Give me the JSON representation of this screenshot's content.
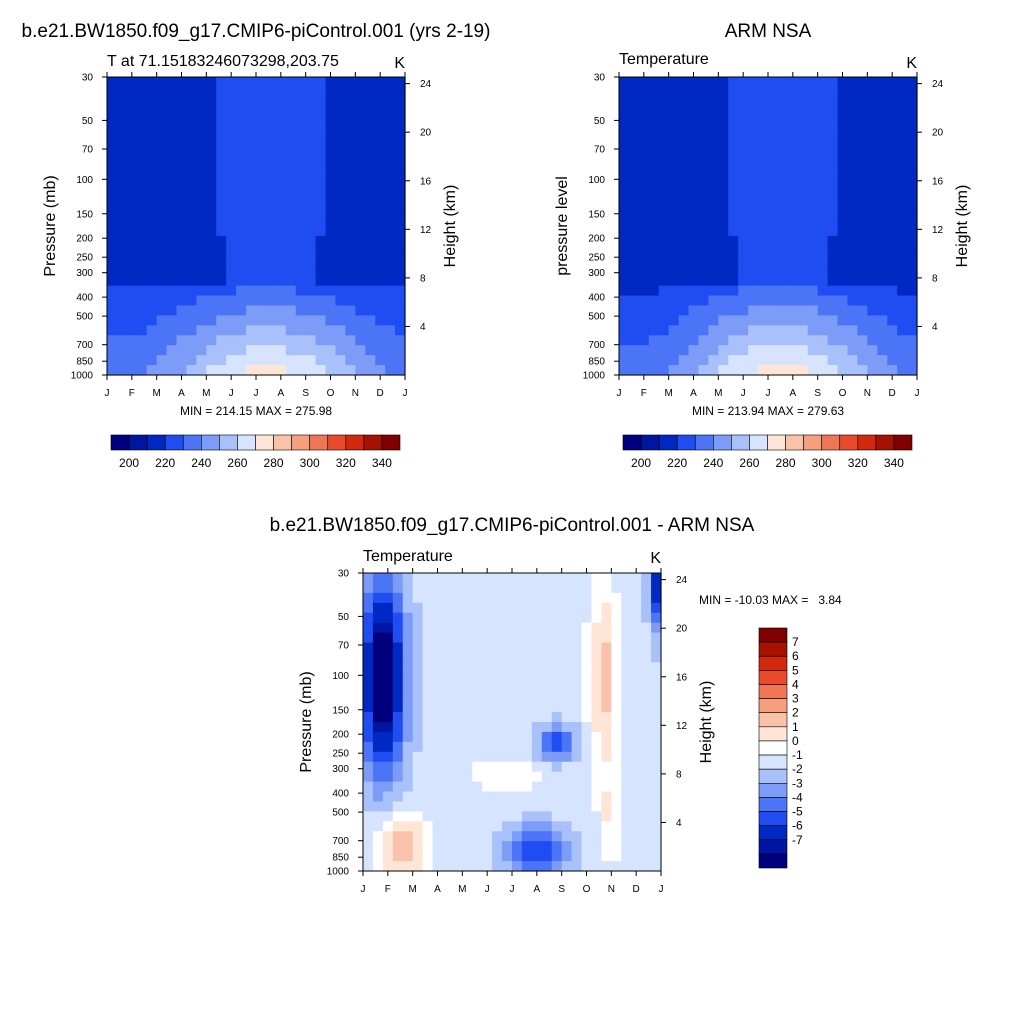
{
  "colors": {
    "abs_scale": [
      "#00007f",
      "#0016a2",
      "#0029c4",
      "#1f4df1",
      "#4c74f6",
      "#7c9cf7",
      "#a9c1fa",
      "#d6e4ff",
      "#fee5d6",
      "#fac2aa",
      "#f59f7f",
      "#ef7654",
      "#e94a2c",
      "#d0290e",
      "#a61100",
      "#7f0000"
    ],
    "diff_scale": [
      "#00007f",
      "#0016a2",
      "#0029c4",
      "#1f4df1",
      "#4c74f6",
      "#7c9cf7",
      "#a9c1fa",
      "#d6e4ff",
      "#ffffff",
      "#fee5d6",
      "#fac2aa",
      "#f59f7f",
      "#ef7654",
      "#e94a2c",
      "#d0290e",
      "#a61100",
      "#7f0000"
    ]
  },
  "chart_data": [
    {
      "type": "heatmap",
      "id": "model",
      "title": "b.e21.BW1850.f09_g17.CMIP6-piControl.001 (yrs 2-19)",
      "subtitle_left": "T at 71.15183246073298,203.75",
      "subtitle_right": "K",
      "ylabel": "Pressure (mb)",
      "ylabel_right": "Height (km)",
      "months": [
        "J",
        "F",
        "M",
        "A",
        "M",
        "J",
        "J",
        "A",
        "S",
        "O",
        "N",
        "D",
        "J"
      ],
      "pressure_ticks": [
        "30",
        "50",
        "70",
        "100",
        "150",
        "200",
        "250",
        "300",
        "400",
        "500",
        "700",
        "850",
        "1000"
      ],
      "pressure_values": [
        30,
        50,
        70,
        100,
        150,
        200,
        250,
        300,
        400,
        500,
        700,
        850,
        1000
      ],
      "height_ticks": [
        "4",
        "8",
        "12",
        "16",
        "20",
        "24"
      ],
      "height_values": [
        4,
        8,
        12,
        16,
        20,
        24
      ],
      "minmax": "MIN = 214.15 MAX = 275.98",
      "colorbar_labels": [
        "200",
        "220",
        "240",
        "260",
        "280",
        "300",
        "320",
        "340"
      ],
      "colorbar_values": [
        200,
        220,
        240,
        260,
        280,
        300,
        320,
        340
      ],
      "levels": [
        195,
        200,
        205,
        210,
        215,
        220,
        225,
        230,
        235,
        240,
        245,
        250,
        255,
        260,
        265,
        270,
        275,
        280,
        285,
        290,
        295,
        300,
        305,
        310,
        315,
        320,
        325,
        330,
        335,
        340,
        345,
        350
      ],
      "level_display_bounds": [
        190,
        200,
        210,
        220,
        230,
        240,
        250,
        260,
        270,
        280,
        290,
        300,
        310,
        320,
        330,
        340,
        350
      ]
    },
    {
      "type": "heatmap",
      "id": "obs",
      "title": "ARM NSA",
      "subtitle_left": "Temperature",
      "subtitle_right": "K",
      "ylabel": "pressure level",
      "ylabel_right": "Height (km)",
      "months": [
        "J",
        "F",
        "M",
        "A",
        "M",
        "J",
        "J",
        "A",
        "S",
        "O",
        "N",
        "D",
        "J"
      ],
      "pressure_ticks": [
        "30",
        "50",
        "70",
        "100",
        "150",
        "200",
        "250",
        "300",
        "400",
        "500",
        "700",
        "850",
        "1000"
      ],
      "pressure_values": [
        30,
        50,
        70,
        100,
        150,
        200,
        250,
        300,
        400,
        500,
        700,
        850,
        1000
      ],
      "height_ticks": [
        "4",
        "8",
        "12",
        "16",
        "20",
        "24"
      ],
      "height_values": [
        4,
        8,
        12,
        16,
        20,
        24
      ],
      "minmax": "MIN = 213.94 MAX = 279.63",
      "colorbar_labels": [
        "200",
        "220",
        "240",
        "260",
        "280",
        "300",
        "320",
        "340"
      ],
      "colorbar_values": [
        200,
        220,
        240,
        260,
        280,
        300,
        320,
        340
      ]
    },
    {
      "type": "heatmap",
      "id": "diff",
      "title": "b.e21.BW1850.f09_g17.CMIP6-piControl.001 - ARM NSA",
      "subtitle_left": "Temperature",
      "subtitle_right": "K",
      "ylabel": "Pressure (mb)",
      "ylabel_right": "Height (km)",
      "months": [
        "J",
        "F",
        "M",
        "A",
        "M",
        "J",
        "J",
        "A",
        "S",
        "O",
        "N",
        "D",
        "J"
      ],
      "pressure_ticks": [
        "30",
        "50",
        "70",
        "100",
        "150",
        "200",
        "250",
        "300",
        "400",
        "500",
        "700",
        "850",
        "1000"
      ],
      "pressure_values": [
        30,
        50,
        70,
        100,
        150,
        200,
        250,
        300,
        400,
        500,
        700,
        850,
        1000
      ],
      "height_ticks": [
        "4",
        "8",
        "12",
        "16",
        "20",
        "24"
      ],
      "height_values": [
        4,
        8,
        12,
        16,
        20,
        24
      ],
      "minmax": "MIN = -10.03 MAX =   3.84",
      "colorbar_labels": [
        "7",
        "6",
        "5",
        "4",
        "3",
        "2",
        "1",
        "0",
        "-1",
        "-2",
        "-3",
        "-4",
        "-5",
        "-6",
        "-7"
      ],
      "colorbar_values": [
        7,
        6,
        5,
        4,
        3,
        2,
        1,
        0,
        -1,
        -2,
        -3,
        -4,
        -5,
        -6,
        -7
      ]
    }
  ]
}
